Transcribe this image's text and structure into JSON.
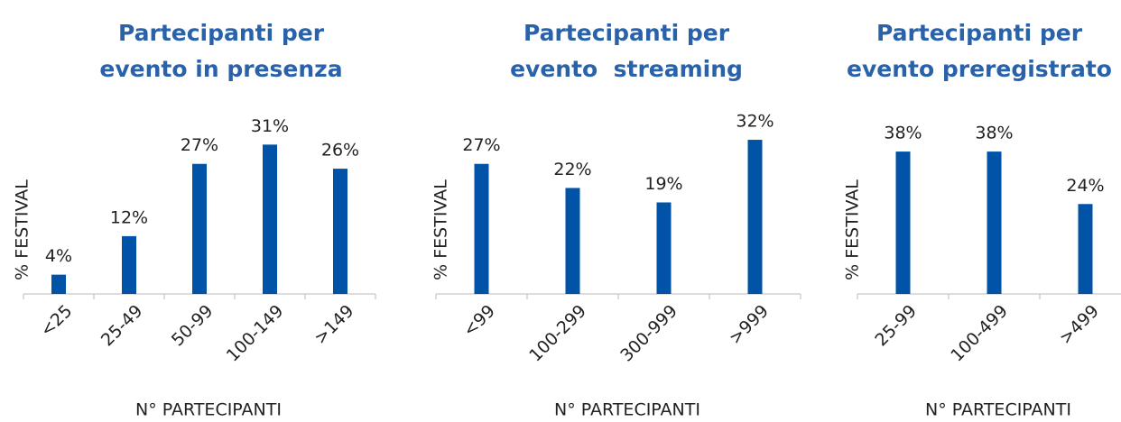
{
  "chart_data": [
    {
      "type": "bar",
      "title": [
        "Partecipanti per",
        "evento in presenza"
      ],
      "y_label": "% FESTIVAL",
      "x_label": "N° PARTECIPANTI",
      "categories": [
        "<25",
        "25-49",
        "50-99",
        "100-149",
        ">149"
      ],
      "values": [
        4,
        12,
        27,
        31,
        26
      ],
      "value_labels": [
        "4%",
        "12%",
        "27%",
        "31%",
        "26%"
      ],
      "color": "#0053a6",
      "ylim": [
        0,
        35
      ]
    },
    {
      "type": "bar",
      "title": [
        "Partecipanti per",
        "evento  streaming"
      ],
      "y_label": "% FESTIVAL",
      "x_label": "N° PARTECIPANTI",
      "categories": [
        "<99",
        "100-299",
        "300-999",
        ">999"
      ],
      "values": [
        27,
        22,
        19,
        32
      ],
      "value_labels": [
        "27%",
        "22%",
        "19%",
        "32%"
      ],
      "color": "#0053a6",
      "ylim": [
        0,
        35
      ]
    },
    {
      "type": "bar",
      "title": [
        "Partecipanti per",
        "evento preregistrato"
      ],
      "y_label": "% FESTIVAL",
      "x_label": "N° PARTECIPANTI",
      "categories": [
        "25-99",
        "100-499",
        ">499"
      ],
      "values": [
        38,
        38,
        24
      ],
      "value_labels": [
        "38%",
        "38%",
        "24%"
      ],
      "color": "#0053a6",
      "ylim": [
        0,
        45
      ]
    }
  ]
}
